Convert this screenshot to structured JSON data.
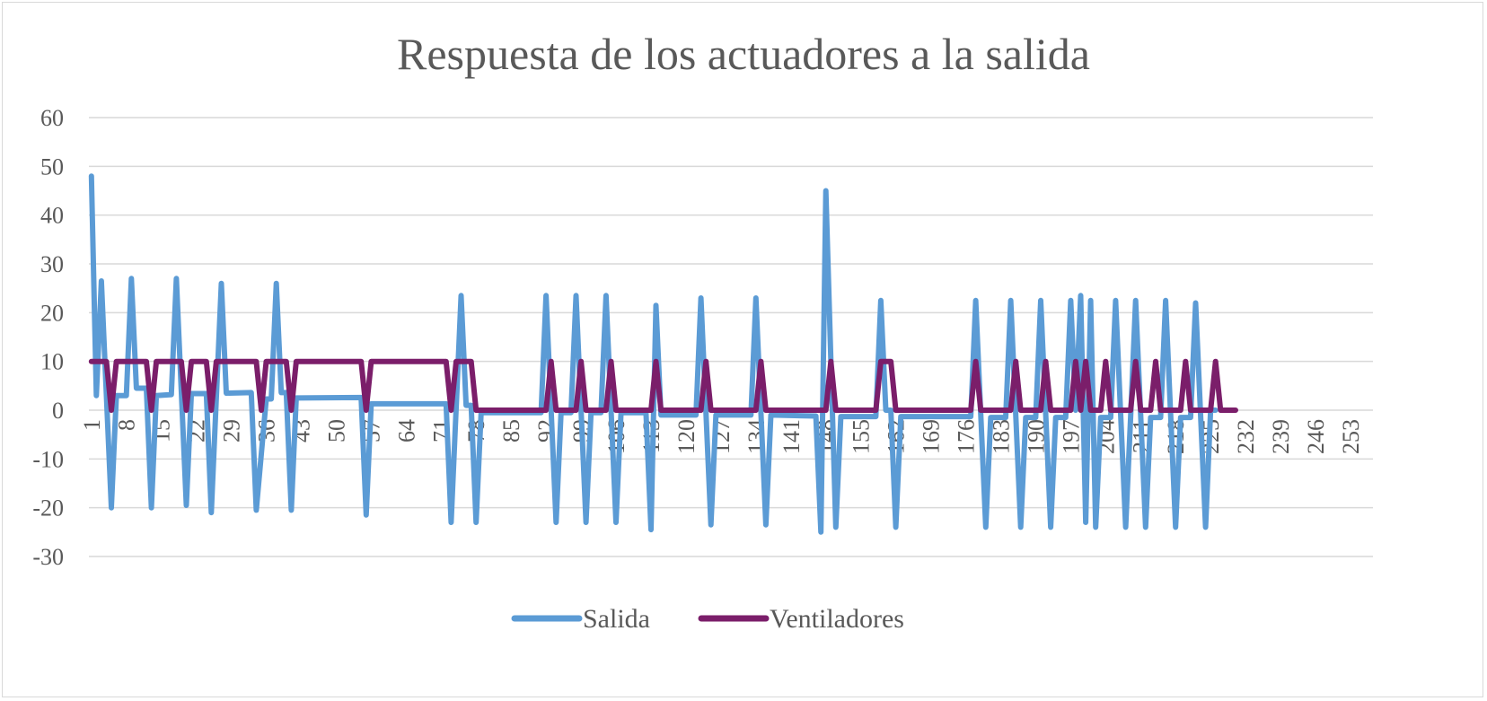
{
  "chart_data": {
    "type": "line",
    "title": "Respuesta de los actuadores a la salida",
    "xlabel": "",
    "ylabel": "",
    "ylim": [
      -30,
      60
    ],
    "yticks": [
      60,
      50,
      40,
      30,
      20,
      10,
      0,
      -10,
      -20,
      -30
    ],
    "x_count": 257,
    "x_tick_labels": [
      "1",
      "8",
      "15",
      "22",
      "29",
      "36",
      "43",
      "50",
      "57",
      "64",
      "71",
      "78",
      "85",
      "92",
      "99",
      "106",
      "113",
      "120",
      "127",
      "134",
      "141",
      "148",
      "155",
      "162",
      "169",
      "176",
      "183",
      "190",
      "197",
      "204",
      "211",
      "218",
      "225",
      "232",
      "239",
      "246",
      "253"
    ],
    "grid": true,
    "legend_position": "bottom",
    "series": [
      {
        "name": "Salida",
        "color": "#5b9bd5",
        "segments": [
          [
            1,
            48
          ],
          [
            2,
            3
          ],
          [
            3,
            26.5
          ],
          [
            5,
            -20
          ],
          [
            6,
            3
          ],
          [
            8,
            3
          ],
          [
            9,
            27
          ],
          [
            10,
            4.5
          ],
          [
            12,
            4.5
          ],
          [
            13,
            -20
          ],
          [
            14,
            3
          ],
          [
            17,
            3.2
          ],
          [
            18,
            27
          ],
          [
            20,
            -19.5
          ],
          [
            21,
            3.4
          ],
          [
            24,
            3.4
          ],
          [
            25,
            -21
          ],
          [
            27,
            26
          ],
          [
            28,
            3.5
          ],
          [
            33,
            3.6
          ],
          [
            34,
            -20.5
          ],
          [
            36,
            2.3
          ],
          [
            37,
            2.3
          ],
          [
            38,
            26
          ],
          [
            39,
            3.6
          ],
          [
            40,
            3.6
          ],
          [
            41,
            -20.5
          ],
          [
            42,
            2.5
          ],
          [
            55,
            2.6
          ],
          [
            56,
            -21.5
          ],
          [
            57,
            1.3
          ],
          [
            72,
            1.3
          ],
          [
            73,
            -23
          ],
          [
            75,
            23.5
          ],
          [
            76,
            1
          ],
          [
            77,
            1
          ],
          [
            78,
            -23
          ],
          [
            79,
            -0.5
          ],
          [
            91,
            -0.5
          ],
          [
            92,
            23.5
          ],
          [
            94,
            -23
          ],
          [
            95,
            -0.5
          ],
          [
            97,
            -0.5
          ],
          [
            98,
            23.5
          ],
          [
            100,
            -23
          ],
          [
            101,
            -0.5
          ],
          [
            103,
            -0.5
          ],
          [
            104,
            23.5
          ],
          [
            106,
            -23
          ],
          [
            107,
            -0.5
          ],
          [
            112,
            -0.5
          ],
          [
            113,
            -24.5
          ],
          [
            114,
            21.5
          ],
          [
            115,
            -1
          ],
          [
            122,
            -1
          ],
          [
            123,
            23
          ],
          [
            125,
            -23.5
          ],
          [
            126,
            -1
          ],
          [
            133,
            -1
          ],
          [
            134,
            23
          ],
          [
            136,
            -23.5
          ],
          [
            137,
            -1
          ],
          [
            146,
            -1.2
          ],
          [
            147,
            -25
          ],
          [
            148,
            45
          ],
          [
            150,
            -24
          ],
          [
            151,
            -1.3
          ],
          [
            158,
            -1.3
          ],
          [
            159,
            22.5
          ],
          [
            160,
            0
          ],
          [
            161,
            0
          ],
          [
            162,
            -24
          ],
          [
            163,
            -1.3
          ],
          [
            177,
            -1.3
          ],
          [
            178,
            22.5
          ],
          [
            180,
            -24
          ],
          [
            181,
            -1.5
          ],
          [
            184,
            -1.5
          ],
          [
            185,
            22.5
          ],
          [
            187,
            -24
          ],
          [
            188,
            -1.5
          ],
          [
            190,
            -1.5
          ],
          [
            191,
            22.5
          ],
          [
            193,
            -24
          ],
          [
            194,
            -1.5
          ],
          [
            196,
            -1.5
          ],
          [
            197,
            22.5
          ],
          [
            198,
            0
          ],
          [
            199,
            23.5
          ],
          [
            200,
            -23
          ],
          [
            201,
            22.5
          ],
          [
            202,
            -24
          ],
          [
            203,
            -1.5
          ],
          [
            205,
            -1.5
          ],
          [
            206,
            22.5
          ],
          [
            208,
            -24
          ],
          [
            209,
            -1.5
          ],
          [
            210,
            22.5
          ],
          [
            212,
            -24
          ],
          [
            213,
            -1.5
          ],
          [
            215,
            -1.5
          ],
          [
            216,
            22.5
          ],
          [
            218,
            -24
          ],
          [
            219,
            -1.5
          ],
          [
            221,
            -1.5
          ],
          [
            222,
            22
          ],
          [
            224,
            -24
          ],
          [
            225,
            0
          ],
          [
            226,
            0
          ]
        ]
      },
      {
        "name": "Ventiladores",
        "color": "#7b1e6a",
        "segments": [
          [
            1,
            10
          ],
          [
            4,
            10
          ],
          [
            5,
            0
          ],
          [
            6,
            10
          ],
          [
            12,
            10
          ],
          [
            13,
            0
          ],
          [
            14,
            10
          ],
          [
            19,
            10
          ],
          [
            20,
            0
          ],
          [
            21,
            10
          ],
          [
            24,
            10
          ],
          [
            25,
            0
          ],
          [
            26,
            10
          ],
          [
            34,
            10
          ],
          [
            35,
            0
          ],
          [
            36,
            10
          ],
          [
            40,
            10
          ],
          [
            41,
            0
          ],
          [
            42,
            10
          ],
          [
            55,
            10
          ],
          [
            56,
            0
          ],
          [
            57,
            10
          ],
          [
            72,
            10
          ],
          [
            73,
            0
          ],
          [
            74,
            10
          ],
          [
            77,
            10
          ],
          [
            78,
            0
          ],
          [
            92,
            0
          ],
          [
            93,
            10
          ],
          [
            94,
            0
          ],
          [
            98,
            0
          ],
          [
            99,
            10
          ],
          [
            100,
            0
          ],
          [
            104,
            0
          ],
          [
            105,
            10
          ],
          [
            106,
            0
          ],
          [
            113,
            0
          ],
          [
            114,
            10
          ],
          [
            115,
            0
          ],
          [
            123,
            0
          ],
          [
            124,
            10
          ],
          [
            125,
            0
          ],
          [
            134,
            0
          ],
          [
            135,
            10
          ],
          [
            136,
            0
          ],
          [
            148,
            0
          ],
          [
            149,
            10
          ],
          [
            150,
            0
          ],
          [
            158,
            0
          ],
          [
            159,
            10
          ],
          [
            161,
            10
          ],
          [
            162,
            0
          ],
          [
            177,
            0
          ],
          [
            178,
            10
          ],
          [
            179,
            0
          ],
          [
            185,
            0
          ],
          [
            186,
            10
          ],
          [
            187,
            0
          ],
          [
            191,
            0
          ],
          [
            192,
            10
          ],
          [
            193,
            0
          ],
          [
            197,
            0
          ],
          [
            198,
            10
          ],
          [
            199,
            0
          ],
          [
            200,
            10
          ],
          [
            201,
            0
          ],
          [
            203,
            0
          ],
          [
            204,
            10
          ],
          [
            205,
            0
          ],
          [
            209,
            0
          ],
          [
            210,
            10
          ],
          [
            211,
            0
          ],
          [
            213,
            0
          ],
          [
            214,
            10
          ],
          [
            215,
            0
          ],
          [
            219,
            0
          ],
          [
            220,
            10
          ],
          [
            221,
            0
          ],
          [
            225,
            0
          ],
          [
            226,
            10
          ],
          [
            227,
            0
          ],
          [
            230,
            0
          ]
        ]
      }
    ]
  }
}
